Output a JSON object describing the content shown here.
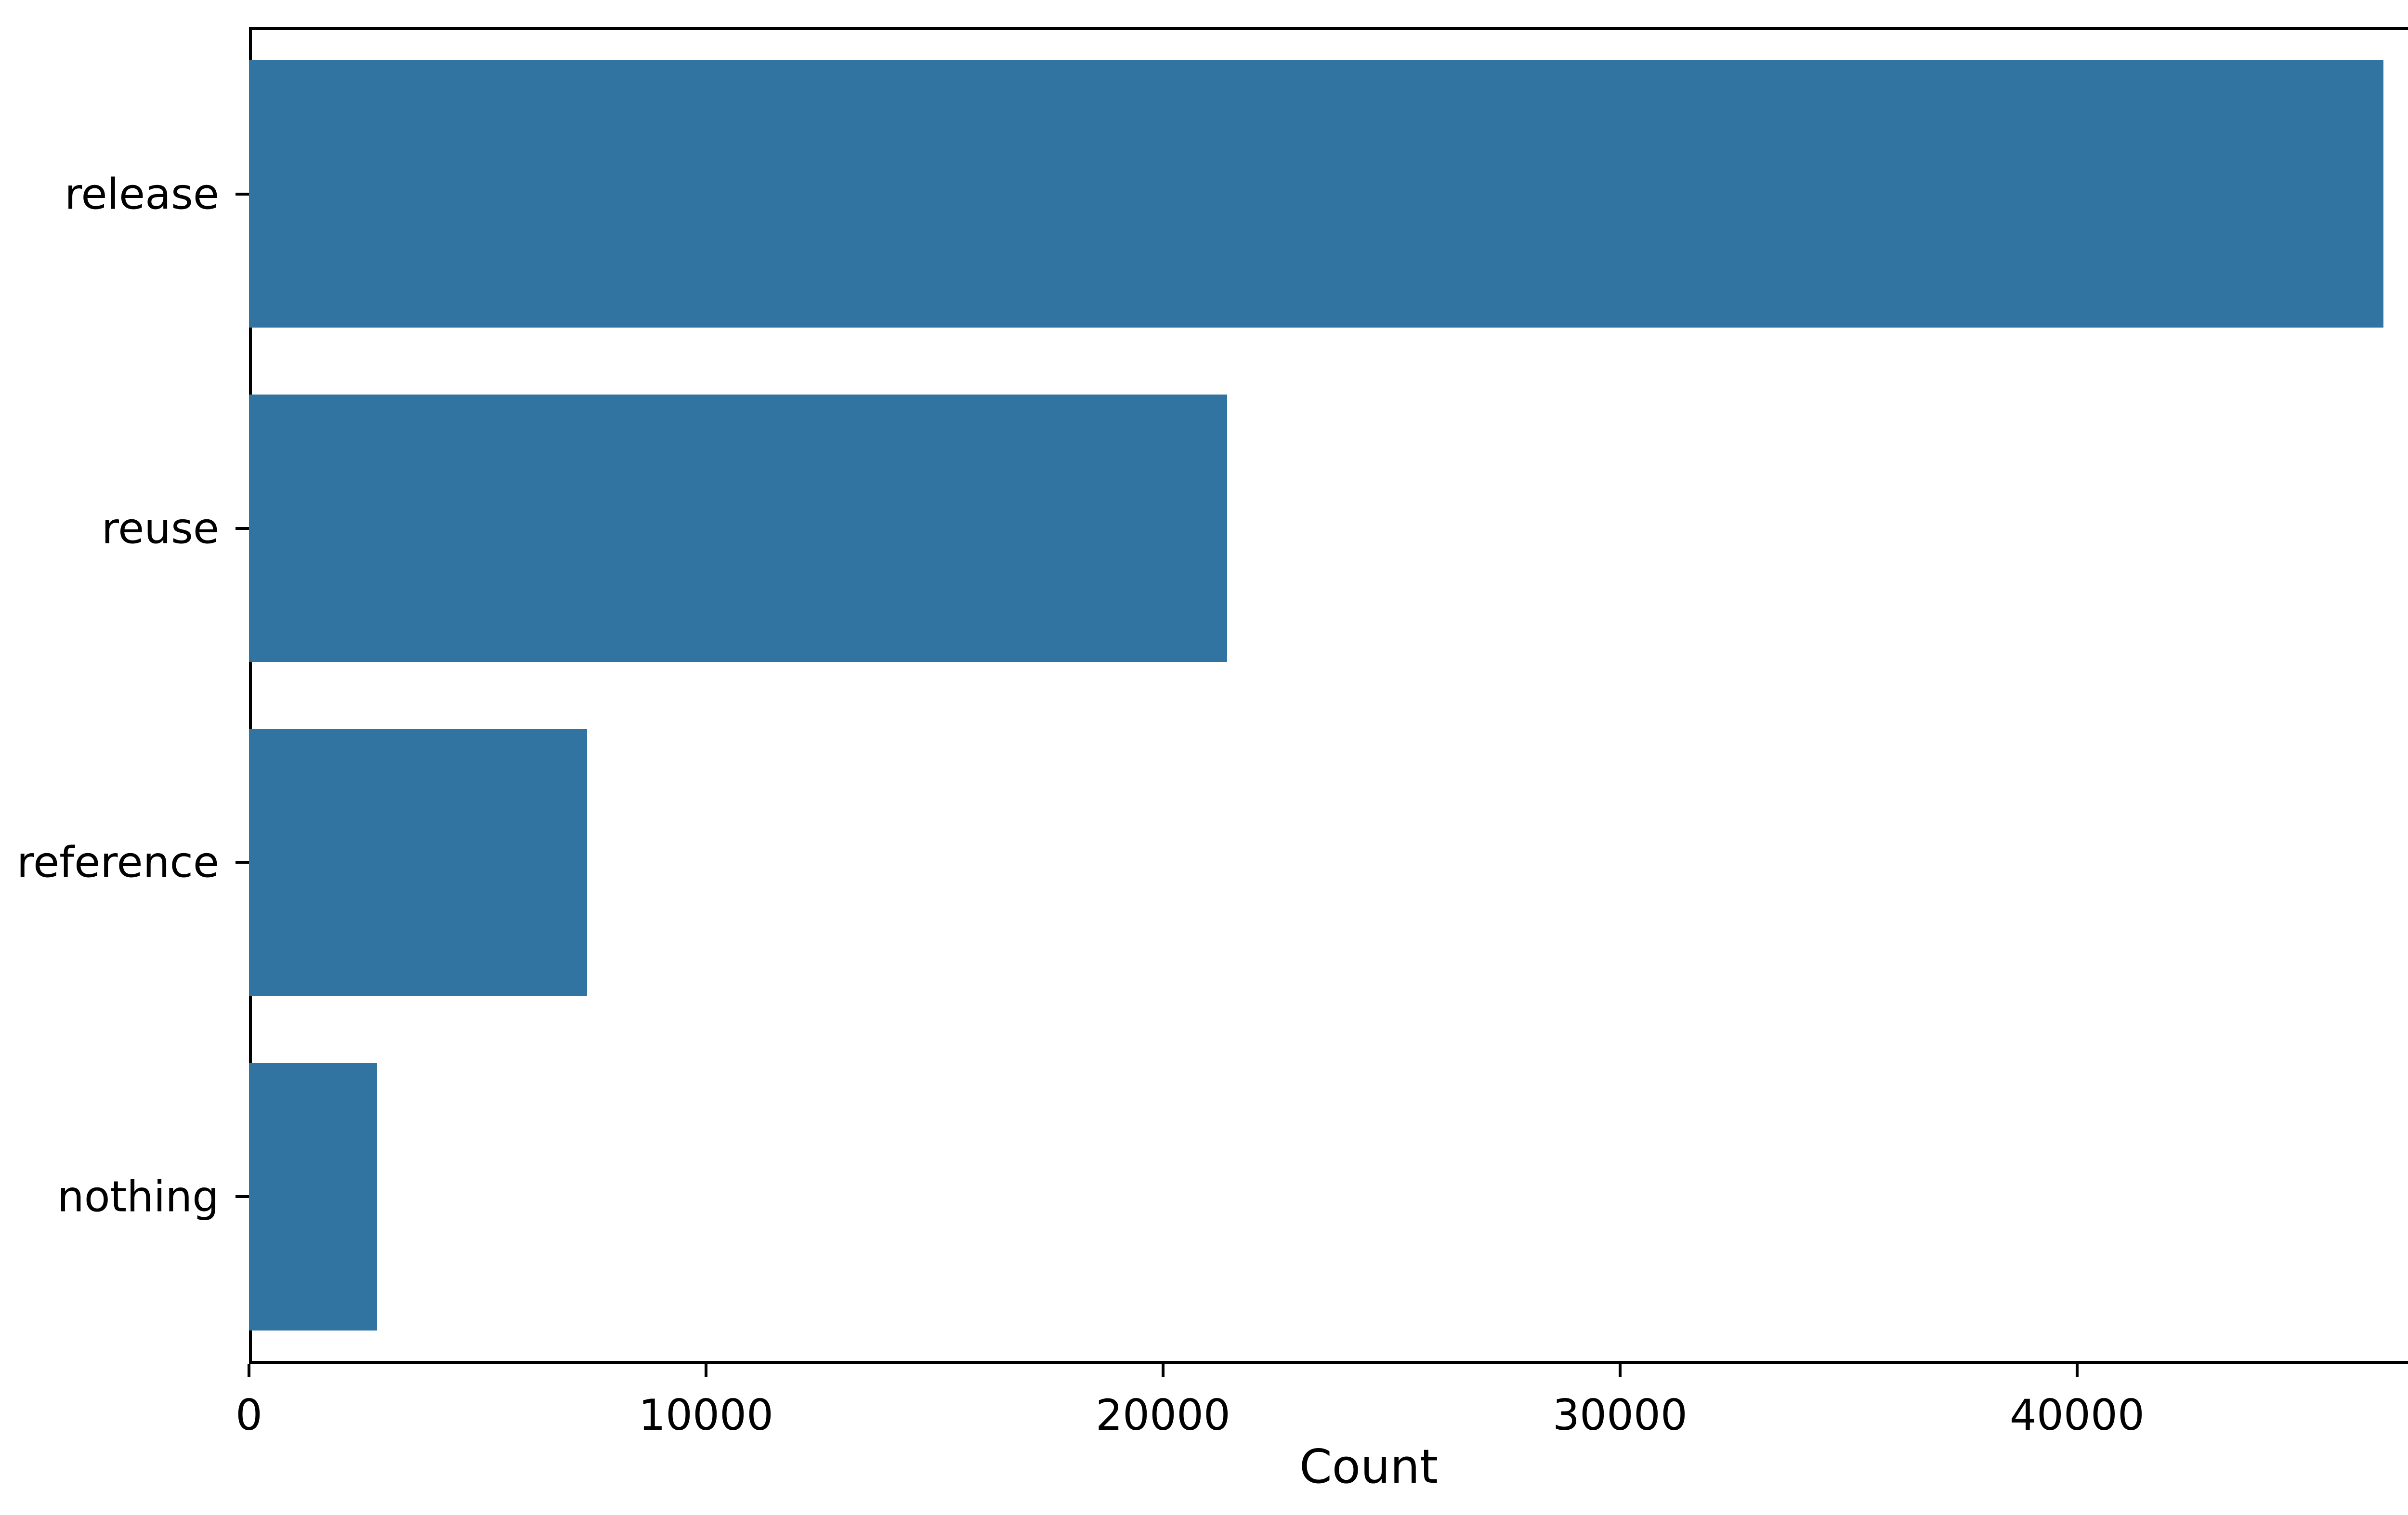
{
  "figure": {
    "background": "#ffffff",
    "bar_color": "#3274a1",
    "axis_color": "#000000",
    "text_color": "#000000"
  },
  "chart_data": {
    "type": "bar",
    "orientation": "horizontal",
    "title": "",
    "xlabel": "Count",
    "ylabel": "",
    "categories": [
      "release",
      "reuse",
      "reference",
      "nothing"
    ],
    "values": [
      46700,
      21400,
      7400,
      2800
    ],
    "xticks": [
      0,
      10000,
      20000,
      30000,
      40000
    ],
    "xtick_labels": [
      "0",
      "10000",
      "20000",
      "30000",
      "40000"
    ],
    "xlim": [
      0,
      49000
    ],
    "grid": false,
    "legend": null,
    "bar_fraction_of_category": 0.8
  }
}
